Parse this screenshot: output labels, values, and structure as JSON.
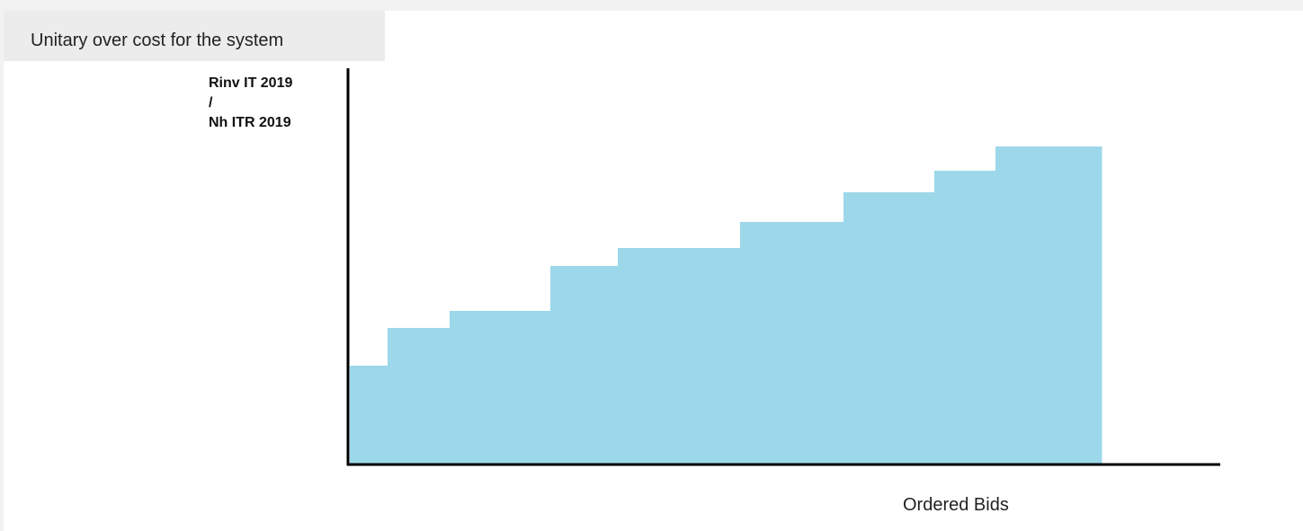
{
  "title": "Unitary over cost for the system",
  "chart_data": {
    "type": "bar",
    "subtype": "step-bar",
    "title": "Unitary over cost for the system",
    "ylabel_lines": [
      "Rinv IT 2019",
      "/",
      "Nh ITR 2019"
    ],
    "xlabel": "Ordered Bids",
    "bar_color": "#9cd8e9",
    "axis_color": "#000000",
    "grid": false,
    "legend": "none",
    "bids": [
      {
        "width": 42,
        "value": 109
      },
      {
        "width": 69,
        "value": 151
      },
      {
        "width": 112,
        "value": 170
      },
      {
        "width": 75,
        "value": 220
      },
      {
        "width": 136,
        "value": 240
      },
      {
        "width": 115,
        "value": 269
      },
      {
        "width": 101,
        "value": 302
      },
      {
        "width": 68,
        "value": 326
      },
      {
        "width": 118,
        "value": 353
      }
    ],
    "xlim": [
      0,
      968
    ],
    "ylim": [
      0,
      440
    ]
  }
}
